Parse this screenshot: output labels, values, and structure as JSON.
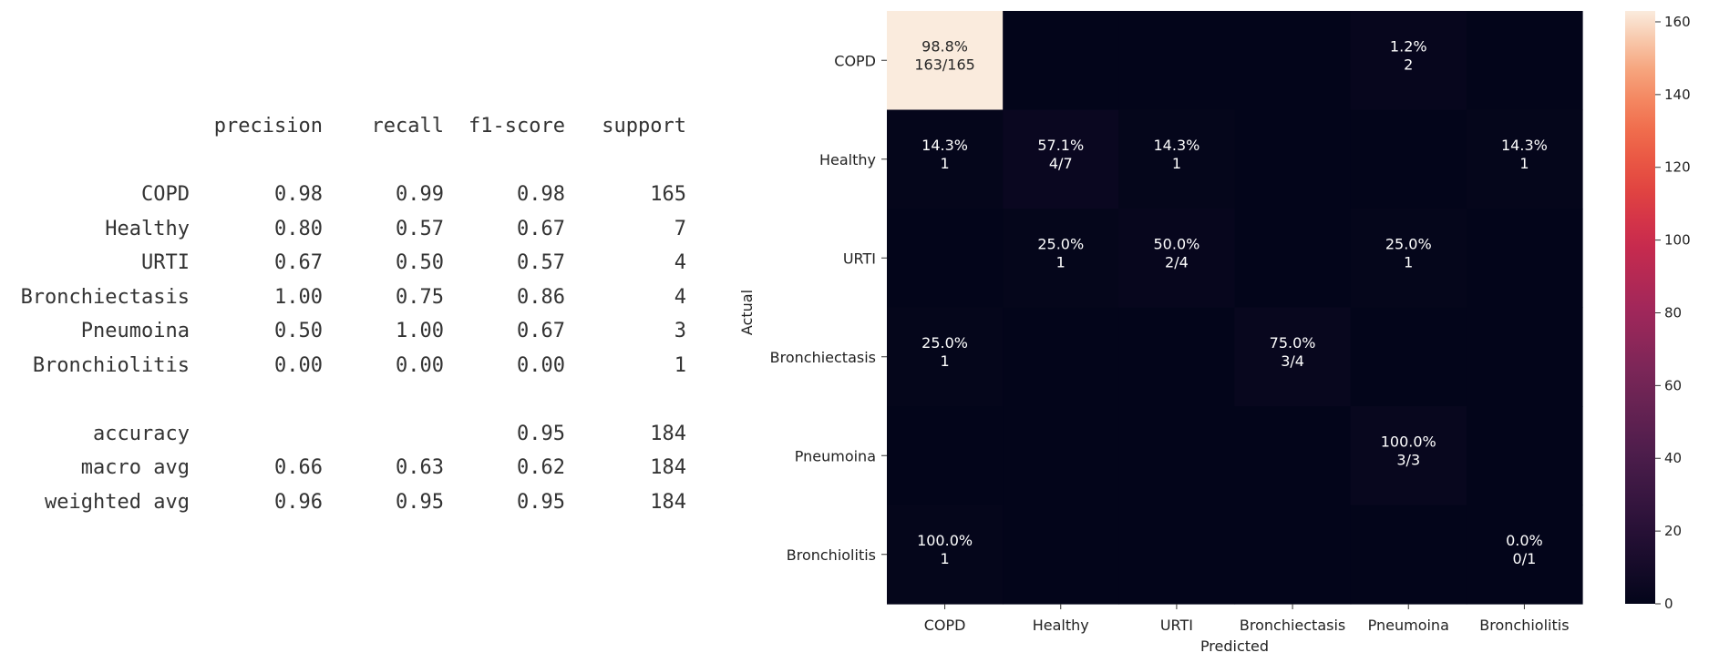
{
  "report": {
    "header": [
      "precision",
      "recall",
      "f1-score",
      "support"
    ],
    "rows": [
      {
        "label": "COPD",
        "precision": "0.98",
        "recall": "0.99",
        "f1": "0.98",
        "support": "165"
      },
      {
        "label": "Healthy",
        "precision": "0.80",
        "recall": "0.57",
        "f1": "0.67",
        "support": "7"
      },
      {
        "label": "URTI",
        "precision": "0.67",
        "recall": "0.50",
        "f1": "0.57",
        "support": "4"
      },
      {
        "label": "Bronchiectasis",
        "precision": "1.00",
        "recall": "0.75",
        "f1": "0.86",
        "support": "4"
      },
      {
        "label": "Pneumoina",
        "precision": "0.50",
        "recall": "1.00",
        "f1": "0.67",
        "support": "3"
      },
      {
        "label": "Bronchiolitis",
        "precision": "0.00",
        "recall": "0.00",
        "f1": "0.00",
        "support": "1"
      }
    ],
    "summary": [
      {
        "label": "accuracy",
        "precision": "",
        "recall": "",
        "f1": "0.95",
        "support": "184"
      },
      {
        "label": "macro avg",
        "precision": "0.66",
        "recall": "0.63",
        "f1": "0.62",
        "support": "184"
      },
      {
        "label": "weighted avg",
        "precision": "0.96",
        "recall": "0.95",
        "f1": "0.95",
        "support": "184"
      }
    ]
  },
  "chart_data": {
    "type": "heatmap",
    "title": "",
    "xlabel": "Predicted",
    "ylabel": "Actual",
    "x_categories": [
      "COPD",
      "Healthy",
      "URTI",
      "Bronchiectasis",
      "Pneumoina",
      "Bronchiolitis"
    ],
    "y_categories": [
      "COPD",
      "Healthy",
      "URTI",
      "Bronchiectasis",
      "Pneumoina",
      "Bronchiolitis"
    ],
    "values": [
      [
        163,
        0,
        0,
        0,
        2,
        0
      ],
      [
        1,
        4,
        1,
        0,
        0,
        1
      ],
      [
        0,
        1,
        2,
        0,
        1,
        0
      ],
      [
        1,
        0,
        0,
        3,
        0,
        0
      ],
      [
        0,
        0,
        0,
        0,
        3,
        0
      ],
      [
        1,
        0,
        0,
        0,
        0,
        0
      ]
    ],
    "annotations": [
      [
        "98.8%\n163/165",
        "",
        "",
        "",
        "1.2%\n2",
        ""
      ],
      [
        "14.3%\n1",
        "57.1%\n4/7",
        "14.3%\n1",
        "",
        "",
        "14.3%\n1"
      ],
      [
        "",
        "25.0%\n1",
        "50.0%\n2/4",
        "",
        "25.0%\n1",
        ""
      ],
      [
        "25.0%\n1",
        "",
        "",
        "75.0%\n3/4",
        "",
        ""
      ],
      [
        "",
        "",
        "",
        "",
        "100.0%\n3/3",
        ""
      ],
      [
        "100.0%\n1",
        "",
        "",
        "",
        "",
        "0.0%\n0/1"
      ]
    ],
    "colorbar": {
      "min": 0,
      "max": 163,
      "ticks": [
        0,
        20,
        40,
        60,
        80,
        100,
        120,
        140,
        160
      ],
      "colormap": "rocket"
    }
  }
}
